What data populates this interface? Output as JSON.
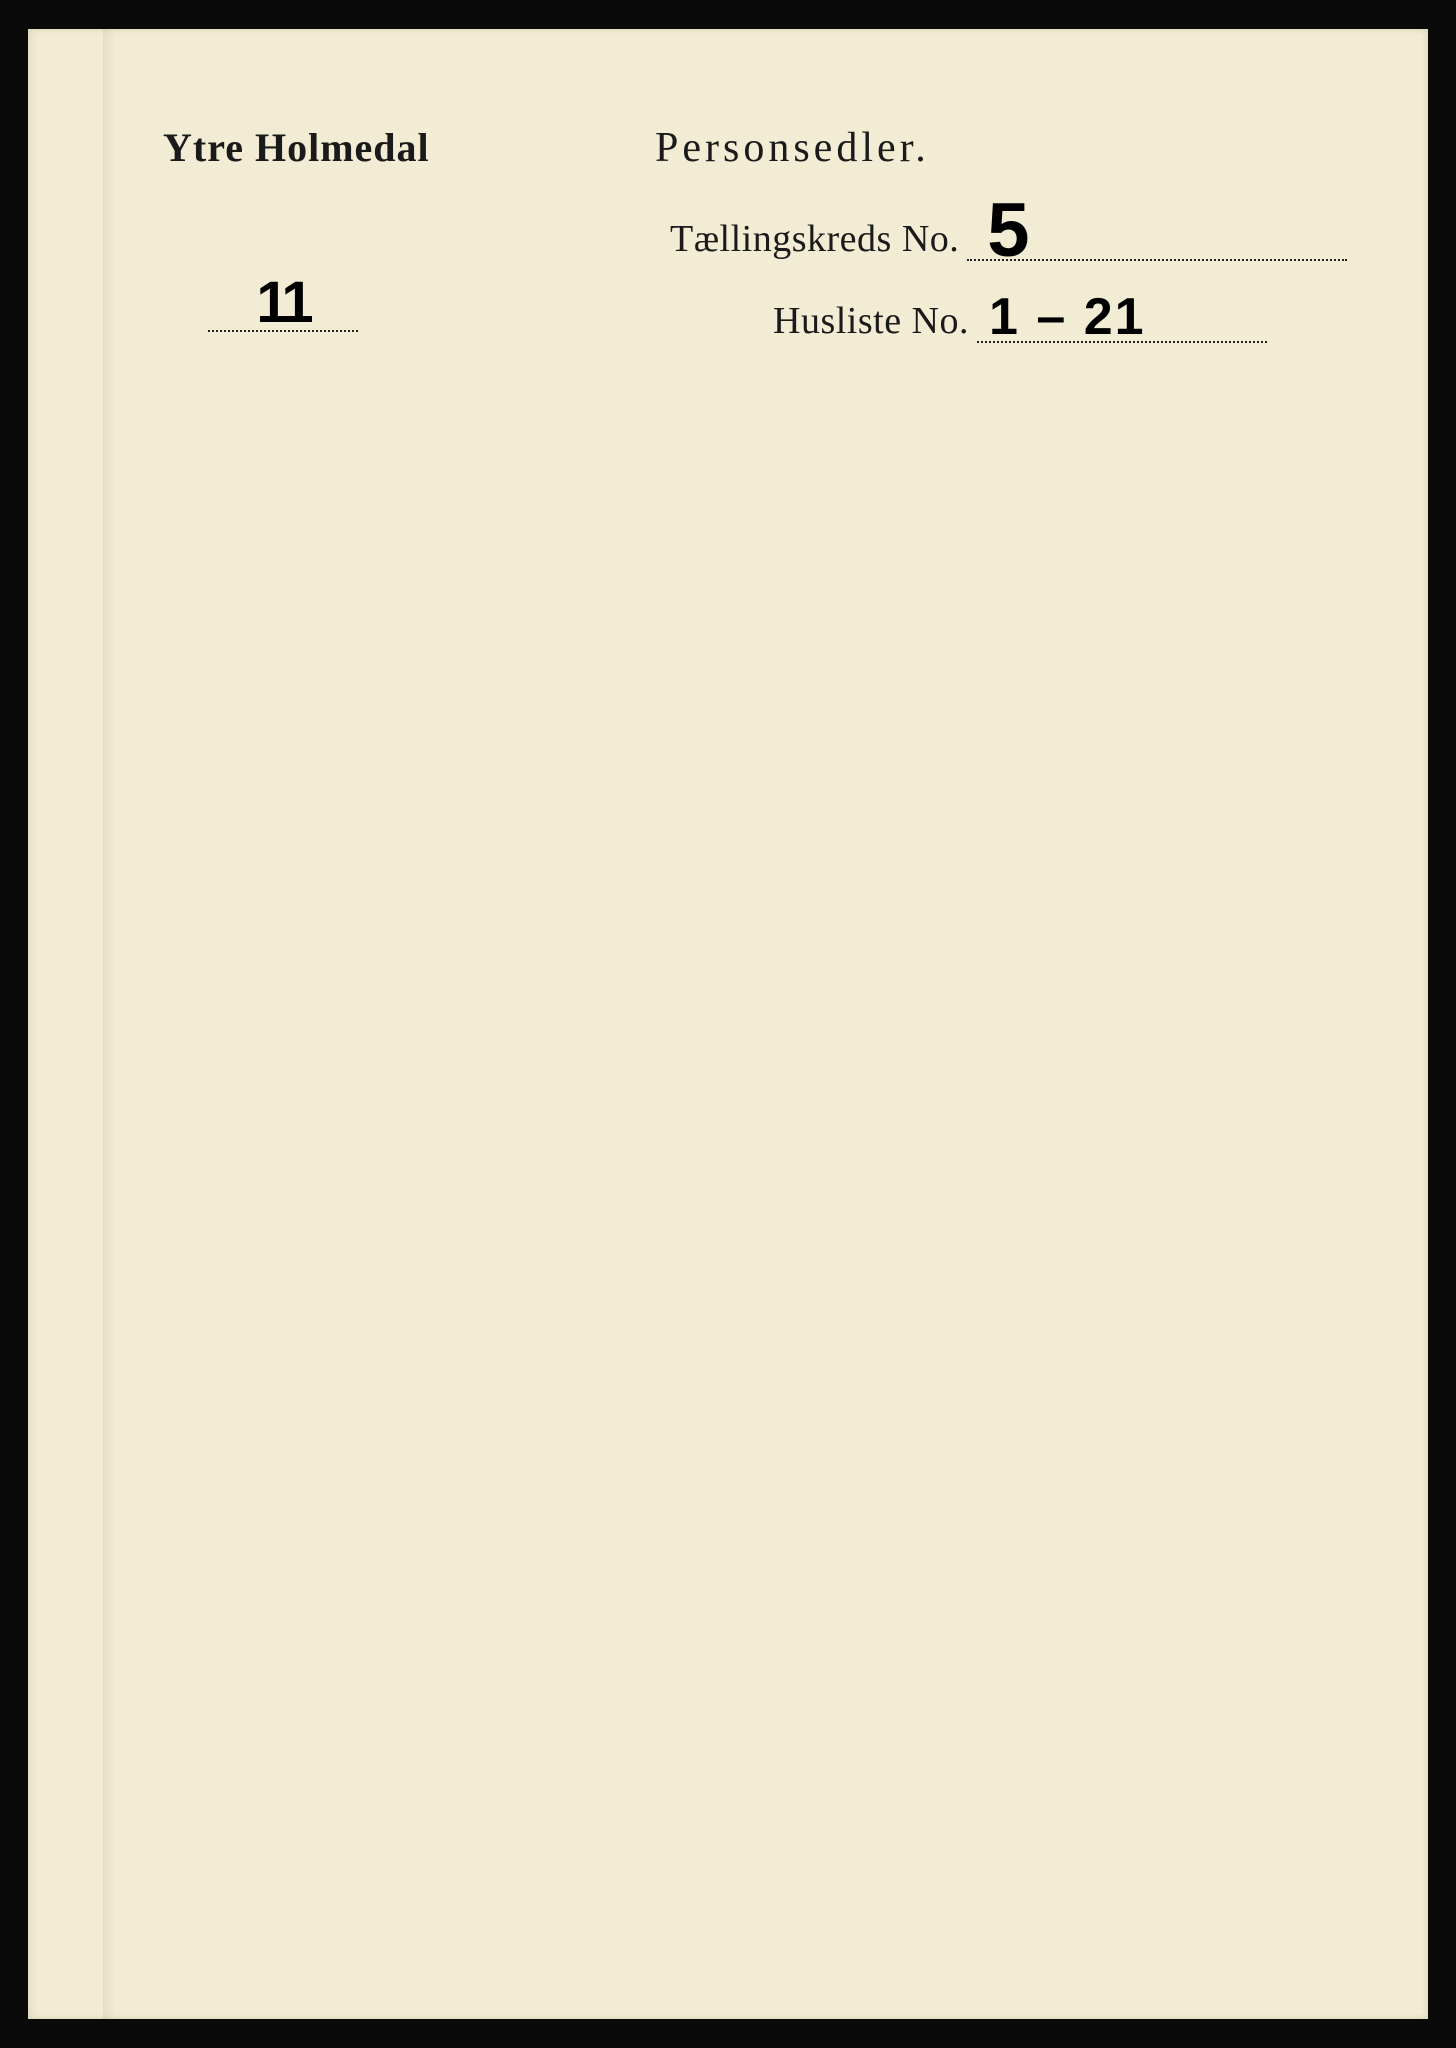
{
  "page": {
    "background_color": "#f2ecd4",
    "frame_color": "#0a0a0a"
  },
  "header": {
    "location": "Ytre Holmedal",
    "doc_type": "Personsedler.",
    "page_number": "11"
  },
  "fields": {
    "district": {
      "label": "Tællingskreds No.",
      "value": "5"
    },
    "houselist": {
      "label": "Husliste No.",
      "value": "1 – 21"
    }
  },
  "typography": {
    "printed_font": "serif",
    "handwritten_font": "cursive",
    "title_bold_size_pt": 40,
    "doc_title_size_pt": 42,
    "field_label_size_pt": 38,
    "page_number_size_pt": 58,
    "district_value_size_pt": 76,
    "houselist_value_size_pt": 52,
    "text_color": "#1a1a1a",
    "handwriting_color": "#000000",
    "underline_style": "dotted",
    "underline_color": "#222222"
  }
}
